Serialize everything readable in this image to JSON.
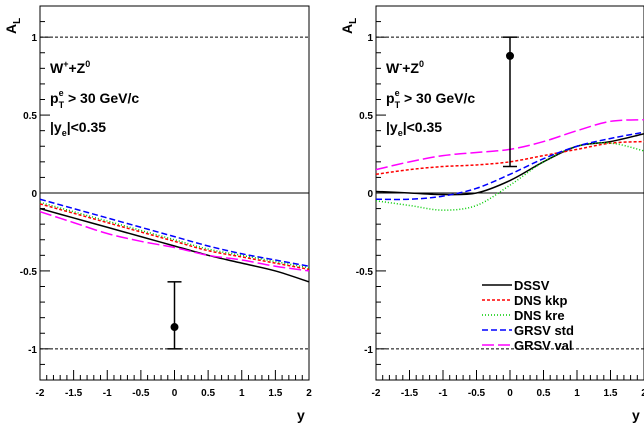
{
  "chart_data": [
    {
      "type": "line",
      "panel": "left",
      "ylabel_main": "A",
      "ylabel_sub": "L",
      "xlabel": "y",
      "xlim": [
        -2,
        2
      ],
      "ylim": [
        -1.2,
        1.2
      ],
      "x_ticks": [
        -2,
        -1.5,
        -1,
        -0.5,
        0,
        0.5,
        1,
        1.5,
        2
      ],
      "x_tick_labels": [
        "-2",
        "-1.5",
        "-1",
        "-0.5",
        "0",
        "0.5",
        "1",
        "1.5",
        "2"
      ],
      "y_ticks": [
        -1,
        -0.5,
        0,
        0.5,
        1
      ],
      "y_tick_labels": [
        "-1",
        "-0.5",
        "0",
        "0.5",
        "1"
      ],
      "reference_lines": [
        1,
        0,
        -1
      ],
      "annotation": {
        "line1_main": "W",
        "line1_sup": "+",
        "line1_rest": "+Z",
        "line1_sup2": "0",
        "line2_main": "p",
        "line2_sup": "e",
        "line2_sub": "T",
        "line2_rest": " > 30 GeV/c",
        "line3_pre": "|y",
        "line3_sub": "e",
        "line3_post": "|<0.35"
      },
      "data_point": {
        "x": 0,
        "y": -0.86,
        "err_low": 0.14,
        "err_high": 0.29
      },
      "series": [
        {
          "name": "DSSV",
          "color": "#000000",
          "dash": "",
          "x": [
            -2,
            -1.5,
            -1,
            -0.5,
            0,
            0.5,
            1,
            1.5,
            2
          ],
          "y": [
            -0.1,
            -0.16,
            -0.22,
            -0.28,
            -0.34,
            -0.4,
            -0.45,
            -0.5,
            -0.57
          ]
        },
        {
          "name": "DNS kkp",
          "color": "#ff0000",
          "dash": "3,2",
          "x": [
            -2,
            -1.5,
            -1,
            -0.5,
            0,
            0.5,
            1,
            1.5,
            2
          ],
          "y": [
            -0.07,
            -0.13,
            -0.19,
            -0.25,
            -0.31,
            -0.37,
            -0.41,
            -0.45,
            -0.49
          ]
        },
        {
          "name": "DNS kre",
          "color": "#00cc00",
          "dash": "1,2",
          "x": [
            -2,
            -1.5,
            -1,
            -0.5,
            0,
            0.5,
            1,
            1.5,
            2
          ],
          "y": [
            -0.06,
            -0.12,
            -0.18,
            -0.24,
            -0.3,
            -0.36,
            -0.4,
            -0.44,
            -0.48
          ]
        },
        {
          "name": "GRSV std",
          "color": "#0000ff",
          "dash": "6,3",
          "x": [
            -2,
            -1.5,
            -1,
            -0.5,
            0,
            0.5,
            1,
            1.5,
            2
          ],
          "y": [
            -0.04,
            -0.1,
            -0.16,
            -0.22,
            -0.28,
            -0.34,
            -0.39,
            -0.43,
            -0.47
          ]
        },
        {
          "name": "GRSV val",
          "color": "#ff00ff",
          "dash": "12,4",
          "x": [
            -2,
            -1.5,
            -1,
            -0.5,
            0,
            0.5,
            1,
            1.5,
            2
          ],
          "y": [
            -0.12,
            -0.19,
            -0.26,
            -0.31,
            -0.35,
            -0.4,
            -0.43,
            -0.47,
            -0.5
          ]
        }
      ]
    },
    {
      "type": "line",
      "panel": "right",
      "ylabel_main": "A",
      "ylabel_sub": "L",
      "xlabel": "y",
      "xlim": [
        -2,
        2
      ],
      "ylim": [
        -1.2,
        1.2
      ],
      "x_ticks": [
        -2,
        -1.5,
        -1,
        -0.5,
        0,
        0.5,
        1,
        1.5,
        2
      ],
      "x_tick_labels": [
        "-2",
        "-1.5",
        "-1",
        "-0.5",
        "0",
        "0.5",
        "1",
        "1.5",
        "2"
      ],
      "y_ticks": [
        -1,
        -0.5,
        0,
        0.5,
        1
      ],
      "y_tick_labels": [
        "-1",
        "-0.5",
        "0",
        "0.5",
        "1"
      ],
      "reference_lines": [
        1,
        0,
        -1
      ],
      "annotation": {
        "line1_main": "W",
        "line1_sup": "-",
        "line1_rest": "+Z",
        "line1_sup2": "0",
        "line2_main": "p",
        "line2_sup": "e",
        "line2_sub": "T",
        "line2_rest": " > 30 GeV/c",
        "line3_pre": "|y",
        "line3_sub": "e",
        "line3_post": "|<0.35"
      },
      "data_point": {
        "x": 0,
        "y": 0.88,
        "err_low": 0.71,
        "err_high": 0.12
      },
      "legend": {
        "placement": "bottom-right"
      },
      "series": [
        {
          "name": "DSSV",
          "color": "#000000",
          "dash": "",
          "x": [
            -2,
            -1.5,
            -1,
            -0.5,
            0,
            0.5,
            1,
            1.5,
            2
          ],
          "y": [
            0.01,
            0.0,
            -0.01,
            0.0,
            0.08,
            0.2,
            0.3,
            0.33,
            0.38
          ]
        },
        {
          "name": "DNS kkp",
          "color": "#ff0000",
          "dash": "3,2",
          "x": [
            -2,
            -1.5,
            -1,
            -0.5,
            0,
            0.5,
            1,
            1.5,
            2
          ],
          "y": [
            0.12,
            0.15,
            0.17,
            0.18,
            0.2,
            0.24,
            0.28,
            0.32,
            0.33
          ]
        },
        {
          "name": "DNS kre",
          "color": "#00cc00",
          "dash": "1,2",
          "x": [
            -2,
            -1.5,
            -1,
            -0.5,
            0,
            0.5,
            1,
            1.5,
            2
          ],
          "y": [
            -0.05,
            -0.08,
            -0.11,
            -0.08,
            0.05,
            0.2,
            0.3,
            0.32,
            0.27
          ]
        },
        {
          "name": "GRSV std",
          "color": "#0000ff",
          "dash": "6,3",
          "x": [
            -2,
            -1.5,
            -1,
            -0.5,
            0,
            0.5,
            1,
            1.5,
            2
          ],
          "y": [
            -0.04,
            -0.04,
            -0.02,
            0.03,
            0.12,
            0.22,
            0.3,
            0.35,
            0.39
          ]
        },
        {
          "name": "GRSV val",
          "color": "#ff00ff",
          "dash": "12,4",
          "x": [
            -2,
            -1.5,
            -1,
            -0.5,
            0,
            0.5,
            1,
            1.5,
            2
          ],
          "y": [
            0.15,
            0.2,
            0.24,
            0.26,
            0.28,
            0.33,
            0.4,
            0.46,
            0.47
          ]
        }
      ]
    }
  ]
}
